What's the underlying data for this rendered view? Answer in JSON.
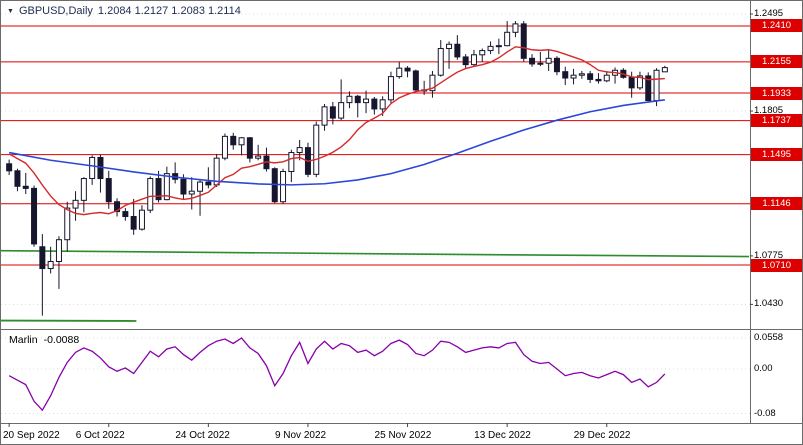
{
  "header": {
    "collapse_icon": "▼",
    "symbol": "GBPUSD,Daily",
    "ohlc": "1.2084 1.2127 1.2083 1.2114"
  },
  "indicator": {
    "name": "Marlin",
    "value": "-0.0088"
  },
  "colors": {
    "level_red": "#dd0000",
    "flag_bg": "#dd0000",
    "flag_text": "#ffffff",
    "ma_red": "#d42a2a",
    "ma_blue": "#2c47d8",
    "ma_green": "#2e8b2e",
    "marlin_line": "#8800aa",
    "bull_body": "#ffffff",
    "bear_body": "#16162e",
    "candle_outline": "#16162e",
    "axis_text": "#000000",
    "grid": "#dcdcdc",
    "border": "#6b6b6b"
  },
  "chart_data": {
    "type": "candlestick",
    "title": "GBPUSD, Daily with Marlin oscillator",
    "price_axis": {
      "top": 1.2545,
      "bottom": 1.0255,
      "plain_labels": [
        "1.2495",
        "1.1805",
        "1.0775",
        "1.0430"
      ]
    },
    "level_lines": [
      "1.2410",
      "1.2155",
      "1.1933",
      "1.1737",
      "1.1495",
      "1.1146",
      "1.0710"
    ],
    "x_axis": {
      "tick_indices": [
        0,
        12,
        24,
        36,
        48,
        60,
        72
      ],
      "tick_labels": [
        "20 Sep 2022",
        "6 Oct 2022",
        "24 Oct 2022",
        "9 Nov 2022",
        "25 Nov 2022",
        "13 Dec 2022",
        "29 Dec 2022"
      ]
    },
    "candles": [
      [
        1.143,
        1.146,
        1.135,
        1.138
      ],
      [
        1.138,
        1.1395,
        1.1235,
        1.127
      ],
      [
        1.127,
        1.1365,
        1.1215,
        1.1255
      ],
      [
        1.1255,
        1.1275,
        1.084,
        1.086
      ],
      [
        1.084,
        1.093,
        1.035,
        1.0685
      ],
      [
        1.0685,
        1.084,
        1.065,
        1.0735
      ],
      [
        1.0735,
        1.0915,
        1.054,
        1.089
      ],
      [
        1.089,
        1.116,
        1.0805,
        1.1115
      ],
      [
        1.1115,
        1.1235,
        1.1025,
        1.117
      ],
      [
        1.117,
        1.1335,
        1.1085,
        1.1325
      ],
      [
        1.1325,
        1.149,
        1.128,
        1.1475
      ],
      [
        1.1475,
        1.1495,
        1.1225,
        1.1325
      ],
      [
        1.1325,
        1.138,
        1.111,
        1.116
      ],
      [
        1.116,
        1.1185,
        1.1055,
        1.109
      ],
      [
        1.109,
        1.1115,
        1.1025,
        1.1055
      ],
      [
        1.1055,
        1.118,
        1.0925,
        1.0965
      ],
      [
        1.0965,
        1.1135,
        1.0955,
        1.11
      ],
      [
        1.11,
        1.134,
        1.108,
        1.1325
      ],
      [
        1.1325,
        1.138,
        1.1155,
        1.1175
      ],
      [
        1.1175,
        1.141,
        1.117,
        1.136
      ],
      [
        1.136,
        1.144,
        1.129,
        1.132
      ],
      [
        1.132,
        1.1355,
        1.118,
        1.1215
      ],
      [
        1.1215,
        1.1335,
        1.1105,
        1.1235
      ],
      [
        1.1235,
        1.132,
        1.106,
        1.13
      ],
      [
        1.13,
        1.1405,
        1.1255,
        1.128
      ],
      [
        1.128,
        1.15,
        1.1265,
        1.147
      ],
      [
        1.147,
        1.1645,
        1.1455,
        1.1625
      ],
      [
        1.1625,
        1.165,
        1.153,
        1.1565
      ],
      [
        1.1565,
        1.162,
        1.149,
        1.1615
      ],
      [
        1.1615,
        1.162,
        1.144,
        1.147
      ],
      [
        1.147,
        1.1565,
        1.1455,
        1.1485
      ],
      [
        1.1485,
        1.1545,
        1.1375,
        1.1395
      ],
      [
        1.1395,
        1.1405,
        1.115,
        1.116
      ],
      [
        1.116,
        1.1395,
        1.1145,
        1.1375
      ],
      [
        1.1375,
        1.153,
        1.13,
        1.151
      ],
      [
        1.151,
        1.16,
        1.1455,
        1.1545
      ],
      [
        1.1545,
        1.158,
        1.1335,
        1.1355
      ],
      [
        1.1355,
        1.173,
        1.1335,
        1.1705
      ],
      [
        1.1705,
        1.1855,
        1.1665,
        1.1835
      ],
      [
        1.1835,
        1.187,
        1.171,
        1.1755
      ],
      [
        1.1755,
        1.203,
        1.174,
        1.1865
      ],
      [
        1.1865,
        1.1945,
        1.1825,
        1.191
      ],
      [
        1.191,
        1.192,
        1.176,
        1.1865
      ],
      [
        1.1865,
        1.195,
        1.179,
        1.189
      ],
      [
        1.189,
        1.1905,
        1.178,
        1.182
      ],
      [
        1.182,
        1.191,
        1.177,
        1.1885
      ],
      [
        1.1885,
        1.2085,
        1.1855,
        1.205
      ],
      [
        1.205,
        1.2155,
        1.2035,
        1.211
      ],
      [
        1.211,
        1.2125,
        1.2045,
        1.209
      ],
      [
        1.209,
        1.21,
        1.194,
        1.1955
      ],
      [
        1.1955,
        1.202,
        1.192,
        1.195
      ],
      [
        1.195,
        1.209,
        1.19,
        1.206
      ],
      [
        1.206,
        1.231,
        1.205,
        1.225
      ],
      [
        1.225,
        1.23,
        1.2105,
        1.228
      ],
      [
        1.228,
        1.2345,
        1.217,
        1.219
      ],
      [
        1.219,
        1.221,
        1.2105,
        1.2135
      ],
      [
        1.2135,
        1.224,
        1.212,
        1.2205
      ],
      [
        1.2205,
        1.225,
        1.2155,
        1.2235
      ],
      [
        1.2235,
        1.23,
        1.221,
        1.2265
      ],
      [
        1.2265,
        1.232,
        1.221,
        1.227
      ],
      [
        1.227,
        1.2445,
        1.2265,
        1.2365
      ],
      [
        1.2365,
        1.2445,
        1.233,
        1.2425
      ],
      [
        1.2425,
        1.2445,
        1.2155,
        1.218
      ],
      [
        1.218,
        1.221,
        1.212,
        1.214
      ],
      [
        1.214,
        1.2225,
        1.2125,
        1.2145
      ],
      [
        1.2145,
        1.224,
        1.209,
        1.218
      ],
      [
        1.218,
        1.2195,
        1.206,
        1.2085
      ],
      [
        1.2085,
        1.212,
        1.199,
        1.204
      ],
      [
        1.204,
        1.2105,
        1.1995,
        1.206
      ],
      [
        1.206,
        1.209,
        1.2035,
        1.207
      ],
      [
        1.207,
        1.209,
        1.2005,
        1.203
      ],
      [
        1.203,
        1.2075,
        1.2,
        1.202
      ],
      [
        1.202,
        1.209,
        1.201,
        1.206
      ],
      [
        1.206,
        1.2115,
        1.2,
        1.2095
      ],
      [
        1.2095,
        1.211,
        1.2035,
        1.2045
      ],
      [
        1.2045,
        1.2085,
        1.19,
        1.197
      ],
      [
        1.197,
        1.2085,
        1.1955,
        1.2055
      ],
      [
        1.2055,
        1.208,
        1.1875,
        1.188
      ],
      [
        1.188,
        1.211,
        1.184,
        1.2095
      ],
      [
        1.2084,
        1.2127,
        1.2083,
        1.2114
      ]
    ],
    "ma_red": {
      "period": 10,
      "seed": [
        1.162,
        1.16,
        1.1585,
        1.156,
        1.154,
        1.1515,
        1.15,
        1.147,
        1.144,
        1.141
      ]
    },
    "ma_blue_points": [
      [
        0,
        1.151
      ],
      [
        5,
        1.1455
      ],
      [
        10,
        1.1415
      ],
      [
        15,
        1.1372
      ],
      [
        20,
        1.1335
      ],
      [
        25,
        1.1305
      ],
      [
        30,
        1.1287
      ],
      [
        34,
        1.128
      ],
      [
        38,
        1.1288
      ],
      [
        42,
        1.1315
      ],
      [
        46,
        1.136
      ],
      [
        50,
        1.1425
      ],
      [
        54,
        1.1505
      ],
      [
        58,
        1.159
      ],
      [
        62,
        1.167
      ],
      [
        66,
        1.174
      ],
      [
        70,
        1.18
      ],
      [
        74,
        1.1845
      ],
      [
        79,
        1.1885
      ]
    ],
    "green_line_frac": [
      [
        0,
        1.0812
      ],
      [
        0.55,
        1.0788
      ],
      [
        1,
        1.077
      ]
    ],
    "green_segment_frac": [
      [
        0,
        1.0315
      ],
      [
        0.181,
        1.0312
      ]
    ],
    "marlin": {
      "top": 0.0684,
      "bottom": -0.097,
      "axis_labels": [
        "0.0558",
        "0.00",
        "-0.08"
      ],
      "values": [
        -0.012,
        -0.02,
        -0.028,
        -0.058,
        -0.074,
        -0.048,
        -0.015,
        0.012,
        0.03,
        0.038,
        0.032,
        0.02,
        0.004,
        -0.004,
        0.002,
        -0.008,
        0.012,
        0.032,
        0.022,
        0.036,
        0.04,
        0.026,
        0.016,
        0.03,
        0.042,
        0.05,
        0.054,
        0.046,
        0.0558,
        0.038,
        0.028,
        0.006,
        -0.03,
        -0.008,
        0.024,
        0.048,
        0.01,
        0.036,
        0.05,
        0.036,
        0.046,
        0.042,
        0.03,
        0.034,
        0.024,
        0.032,
        0.046,
        0.052,
        0.044,
        0.028,
        0.024,
        0.034,
        0.05,
        0.048,
        0.04,
        0.03,
        0.034,
        0.038,
        0.04,
        0.038,
        0.046,
        0.048,
        0.026,
        0.014,
        0.01,
        0.012,
        0.0,
        -0.012,
        -0.008,
        -0.006,
        -0.012,
        -0.016,
        -0.01,
        -0.004,
        -0.01,
        -0.024,
        -0.018,
        -0.032,
        -0.024,
        -0.0088
      ]
    }
  }
}
